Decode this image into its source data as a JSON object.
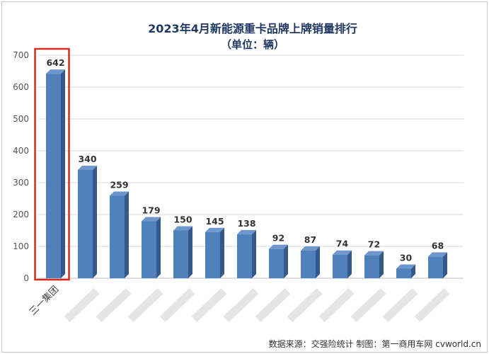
{
  "chart_data": {
    "type": "bar",
    "title": "2023年4月新能源重卡品牌上牌销量排行",
    "subtitle": "（单位：辆）",
    "xlabel": "",
    "ylabel": "",
    "ylim": [
      0,
      700
    ],
    "yticks": [
      "0",
      "100",
      "200",
      "300",
      "400",
      "500",
      "600",
      "700"
    ],
    "grid": true,
    "categories": [
      "三一集团",
      "",
      "",
      "",
      "",
      "",
      "",
      "",
      "",
      "",
      "",
      "",
      ""
    ],
    "values": [
      642,
      340,
      259,
      179,
      150,
      145,
      138,
      92,
      87,
      74,
      72,
      30,
      68
    ],
    "data_labels": [
      "642",
      "340",
      "259",
      "179",
      "150",
      "145",
      "138",
      "92",
      "87",
      "74",
      "72",
      "30",
      "68"
    ],
    "highlight_index": 0,
    "colors": {
      "bar_front": "#4f81bd",
      "bar_side": "#34598a",
      "bar_top": "#6f97cc",
      "highlight": "#d9281f",
      "title": "#1f3864",
      "grid": "#d9d9d9"
    }
  },
  "source_note": "数据来源：交强险统计  制图：第一商用车网 cvworld.cn"
}
